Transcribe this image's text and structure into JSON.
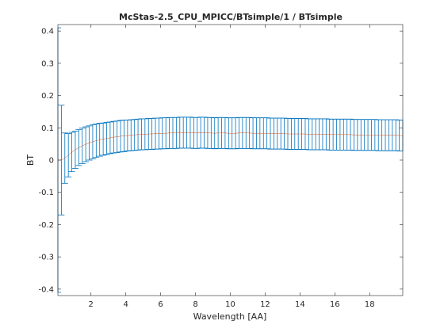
{
  "chart_data": {
    "type": "line",
    "title": "McStas-2.5_CPU_MPICC/BTsimple/1 / BTsimple",
    "xlabel": "Wavelength [AA]",
    "ylabel": "BT",
    "xlim": [
      0.1,
      19.9
    ],
    "ylim": [
      -0.42,
      0.42
    ],
    "xticks": [
      2,
      4,
      6,
      8,
      10,
      12,
      14,
      16,
      18
    ],
    "yticks": [
      -0.4,
      -0.3,
      -0.2,
      -0.1,
      0,
      0.1,
      0.2,
      0.3,
      0.4
    ],
    "xtick_labels": [
      "2",
      "4",
      "6",
      "8",
      "10",
      "12",
      "14",
      "16",
      "18"
    ],
    "ytick_labels": [
      "-0.4",
      "-0.3",
      "-0.2",
      "-0.1",
      "0",
      "0.1",
      "0.2",
      "0.3",
      "0.4"
    ],
    "series": [
      {
        "name": "BT",
        "line_color": "#d95319",
        "errorbar_color": "#0072bd",
        "x": [
          0.1,
          0.3,
          0.5,
          0.7,
          0.9,
          1.1,
          1.3,
          1.5,
          1.7,
          1.9,
          2.1,
          2.3,
          2.5,
          2.7,
          2.9,
          3.1,
          3.3,
          3.5,
          3.7,
          3.9,
          4.1,
          4.3,
          4.5,
          4.7,
          4.9,
          5.1,
          5.3,
          5.5,
          5.7,
          5.9,
          6.1,
          6.3,
          6.5,
          6.7,
          6.9,
          7.1,
          7.3,
          7.5,
          7.7,
          7.9,
          8.1,
          8.3,
          8.5,
          8.7,
          8.9,
          9.1,
          9.3,
          9.5,
          9.7,
          9.9,
          10.1,
          10.3,
          10.5,
          10.7,
          10.9,
          11.1,
          11.3,
          11.5,
          11.7,
          11.9,
          12.1,
          12.3,
          12.5,
          12.7,
          12.9,
          13.1,
          13.3,
          13.5,
          13.7,
          13.9,
          14.1,
          14.3,
          14.5,
          14.7,
          14.9,
          15.1,
          15.3,
          15.5,
          15.7,
          15.9,
          16.1,
          16.3,
          16.5,
          16.7,
          16.9,
          17.1,
          17.3,
          17.5,
          17.7,
          17.9,
          18.1,
          18.3,
          18.5,
          18.7,
          18.9,
          19.1,
          19.3,
          19.5,
          19.7,
          19.9
        ],
        "y": [
          0.0,
          0.0,
          0.006,
          0.015,
          0.025,
          0.032,
          0.039,
          0.044,
          0.049,
          0.053,
          0.057,
          0.06,
          0.063,
          0.065,
          0.067,
          0.069,
          0.071,
          0.072,
          0.074,
          0.075,
          0.076,
          0.077,
          0.078,
          0.079,
          0.08,
          0.08,
          0.081,
          0.081,
          0.082,
          0.082,
          0.083,
          0.083,
          0.084,
          0.084,
          0.084,
          0.085,
          0.085,
          0.085,
          0.085,
          0.084,
          0.084,
          0.085,
          0.085,
          0.084,
          0.084,
          0.083,
          0.084,
          0.084,
          0.084,
          0.083,
          0.083,
          0.083,
          0.084,
          0.084,
          0.084,
          0.084,
          0.083,
          0.083,
          0.083,
          0.083,
          0.083,
          0.082,
          0.082,
          0.082,
          0.082,
          0.082,
          0.081,
          0.081,
          0.081,
          0.081,
          0.081,
          0.081,
          0.08,
          0.08,
          0.08,
          0.08,
          0.08,
          0.08,
          0.079,
          0.079,
          0.079,
          0.079,
          0.079,
          0.079,
          0.079,
          0.078,
          0.078,
          0.078,
          0.078,
          0.078,
          0.078,
          0.078,
          0.077,
          0.077,
          0.077,
          0.077,
          0.077,
          0.077,
          0.076,
          0.076
        ],
        "yerr": [
          0.41,
          0.17,
          0.078,
          0.067,
          0.061,
          0.058,
          0.056,
          0.055,
          0.054,
          0.053,
          0.053,
          0.052,
          0.051,
          0.05,
          0.05,
          0.049,
          0.049,
          0.049,
          0.049,
          0.049,
          0.048,
          0.048,
          0.048,
          0.048,
          0.048,
          0.048,
          0.048,
          0.048,
          0.048,
          0.048,
          0.048,
          0.048,
          0.048,
          0.048,
          0.048,
          0.048,
          0.048,
          0.048,
          0.048,
          0.048,
          0.048,
          0.048,
          0.048,
          0.048,
          0.048,
          0.048,
          0.048,
          0.048,
          0.048,
          0.048,
          0.048,
          0.048,
          0.048,
          0.048,
          0.048,
          0.048,
          0.048,
          0.048,
          0.048,
          0.048,
          0.048,
          0.048,
          0.048,
          0.048,
          0.048,
          0.048,
          0.048,
          0.048,
          0.048,
          0.048,
          0.048,
          0.048,
          0.048,
          0.048,
          0.048,
          0.048,
          0.048,
          0.048,
          0.048,
          0.048,
          0.048,
          0.048,
          0.048,
          0.048,
          0.048,
          0.048,
          0.048,
          0.048,
          0.048,
          0.048,
          0.048,
          0.048,
          0.048,
          0.048,
          0.048,
          0.048,
          0.048,
          0.048,
          0.048,
          0.048
        ]
      }
    ],
    "grid": false,
    "legend": "none"
  },
  "colors": {
    "axis": "#262626",
    "background": "#ffffff",
    "line": "#d95319",
    "errorbar": "#0072bd"
  }
}
